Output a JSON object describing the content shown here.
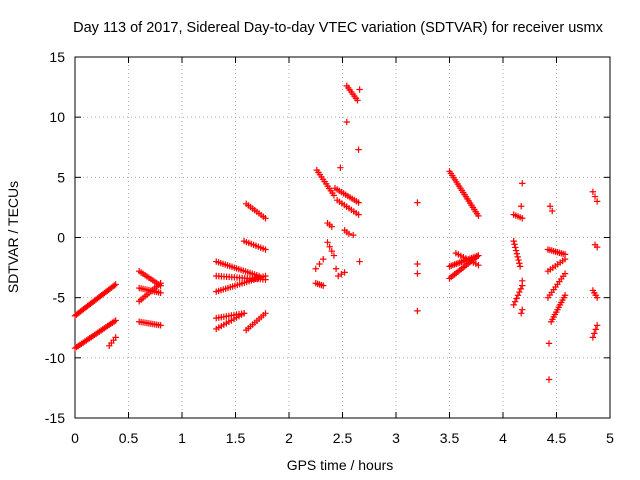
{
  "chart_data": {
    "type": "scatter",
    "title": "Day 113 of 2017, Sidereal Day-to-day VTEC variation (SDTVAR) for receiver usmx",
    "xlabel": "GPS time / hours",
    "ylabel": "SDTVAR / TECUs",
    "xlim": [
      0,
      5
    ],
    "ylim": [
      -15,
      15
    ],
    "xticks": [
      "0",
      "0.5",
      "1",
      "1.5",
      "2",
      "2.5",
      "3",
      "3.5",
      "4",
      "4.5",
      "5"
    ],
    "yticks": [
      "-15",
      "-10",
      "-5",
      "0",
      "5",
      "10",
      "15"
    ],
    "grid": true,
    "marker": "+",
    "colors": {
      "points": "#ff0000",
      "grid": "#a0a0a0",
      "axis": "#000000"
    },
    "arcs": [
      {
        "x0": 0.0,
        "y0": -6.5,
        "x1": 0.38,
        "y1": -3.9,
        "n": 30
      },
      {
        "x0": 0.0,
        "y0": -9.2,
        "x1": 0.38,
        "y1": -6.9,
        "n": 26
      },
      {
        "x0": 0.32,
        "y0": -9.0,
        "x1": 0.38,
        "y1": -8.3,
        "n": 4
      },
      {
        "x0": 0.6,
        "y0": -2.8,
        "x1": 0.8,
        "y1": -4.0,
        "n": 12
      },
      {
        "x0": 0.6,
        "y0": -4.2,
        "x1": 0.8,
        "y1": -4.6,
        "n": 12
      },
      {
        "x0": 0.6,
        "y0": -5.3,
        "x1": 0.8,
        "y1": -3.8,
        "n": 12
      },
      {
        "x0": 0.6,
        "y0": -7.0,
        "x1": 0.8,
        "y1": -7.3,
        "n": 12
      },
      {
        "x0": 1.32,
        "y0": -2.0,
        "x1": 1.72,
        "y1": -3.2,
        "n": 20
      },
      {
        "x0": 1.32,
        "y0": -4.5,
        "x1": 1.78,
        "y1": -3.2,
        "n": 22
      },
      {
        "x0": 1.32,
        "y0": -3.2,
        "x1": 1.78,
        "y1": -3.5,
        "n": 20
      },
      {
        "x0": 1.32,
        "y0": -6.7,
        "x1": 1.58,
        "y1": -6.3,
        "n": 12
      },
      {
        "x0": 1.32,
        "y0": -7.6,
        "x1": 1.58,
        "y1": -6.3,
        "n": 12
      },
      {
        "x0": 1.6,
        "y0": -7.7,
        "x1": 1.78,
        "y1": -6.3,
        "n": 10
      },
      {
        "x0": 1.58,
        "y0": -0.3,
        "x1": 1.78,
        "y1": -1.0,
        "n": 10
      },
      {
        "x0": 1.6,
        "y0": 2.8,
        "x1": 1.78,
        "y1": 1.6,
        "n": 10
      },
      {
        "x0": 2.26,
        "y0": 5.6,
        "x1": 2.42,
        "y1": 3.5,
        "n": 12
      },
      {
        "x0": 2.43,
        "y0": 4.1,
        "x1": 2.65,
        "y1": 2.9,
        "n": 12
      },
      {
        "x0": 2.45,
        "y0": 3.1,
        "x1": 2.65,
        "y1": 1.9,
        "n": 10
      },
      {
        "x0": 2.25,
        "y0": -2.6,
        "x1": 2.32,
        "y1": -1.8,
        "n": 3
      },
      {
        "x0": 2.25,
        "y0": -3.8,
        "x1": 2.32,
        "y1": -4.0,
        "n": 5
      },
      {
        "x0": 2.36,
        "y0": 1.2,
        "x1": 2.4,
        "y1": 0.9,
        "n": 3
      },
      {
        "x0": 2.36,
        "y0": -0.4,
        "x1": 2.42,
        "y1": -1.5,
        "n": 4
      },
      {
        "x0": 2.46,
        "y0": -3.2,
        "x1": 2.52,
        "y1": -2.9,
        "n": 3
      },
      {
        "x0": 2.54,
        "y0": 12.6,
        "x1": 2.64,
        "y1": 11.4,
        "n": 8
      },
      {
        "x0": 2.52,
        "y0": 0.6,
        "x1": 2.56,
        "y1": 0.3,
        "n": 3
      },
      {
        "x0": 3.5,
        "y0": 5.5,
        "x1": 3.77,
        "y1": 1.8,
        "n": 22
      },
      {
        "x0": 3.5,
        "y0": -2.4,
        "x1": 3.77,
        "y1": -1.5,
        "n": 18
      },
      {
        "x0": 3.5,
        "y0": -3.4,
        "x1": 3.77,
        "y1": -1.5,
        "n": 18
      },
      {
        "x0": 3.56,
        "y0": -1.3,
        "x1": 3.77,
        "y1": -2.3,
        "n": 10
      },
      {
        "x0": 4.1,
        "y0": 1.9,
        "x1": 4.18,
        "y1": 1.6,
        "n": 5
      },
      {
        "x0": 4.1,
        "y0": -0.3,
        "x1": 4.16,
        "y1": -2.4,
        "n": 9
      },
      {
        "x0": 4.1,
        "y0": -5.6,
        "x1": 4.18,
        "y1": -4.0,
        "n": 7
      },
      {
        "x0": 4.42,
        "y0": -1.0,
        "x1": 4.58,
        "y1": -1.4,
        "n": 10
      },
      {
        "x0": 4.42,
        "y0": -2.8,
        "x1": 4.58,
        "y1": -1.8,
        "n": 8
      },
      {
        "x0": 4.45,
        "y0": -7.0,
        "x1": 4.58,
        "y1": -4.8,
        "n": 12
      },
      {
        "x0": 4.42,
        "y0": -5.0,
        "x1": 4.58,
        "y1": -3.0,
        "n": 10
      },
      {
        "x0": 4.84,
        "y0": 3.8,
        "x1": 4.88,
        "y1": 3.0,
        "n": 3
      },
      {
        "x0": 4.84,
        "y0": -8.3,
        "x1": 4.88,
        "y1": -7.3,
        "n": 4
      },
      {
        "x0": 4.84,
        "y0": -4.4,
        "x1": 4.88,
        "y1": -5.0,
        "n": 4
      }
    ],
    "points": [
      {
        "x": 2.54,
        "y": 9.6
      },
      {
        "x": 2.65,
        "y": 7.3
      },
      {
        "x": 2.48,
        "y": 5.8
      },
      {
        "x": 2.66,
        "y": 12.3
      },
      {
        "x": 2.66,
        "y": -2.0
      },
      {
        "x": 2.44,
        "y": -2.6
      },
      {
        "x": 2.6,
        "y": 0.2
      },
      {
        "x": 3.2,
        "y": 2.9
      },
      {
        "x": 3.2,
        "y": -2.2
      },
      {
        "x": 3.2,
        "y": -3.0
      },
      {
        "x": 3.2,
        "y": -6.1
      },
      {
        "x": 4.18,
        "y": 4.5
      },
      {
        "x": 4.17,
        "y": 2.6
      },
      {
        "x": 4.18,
        "y": -3.6
      },
      {
        "x": 4.18,
        "y": -6.0
      },
      {
        "x": 4.17,
        "y": -6.3
      },
      {
        "x": 4.43,
        "y": -8.8
      },
      {
        "x": 4.43,
        "y": -11.8
      },
      {
        "x": 4.44,
        "y": 2.6
      },
      {
        "x": 4.46,
        "y": 2.2
      },
      {
        "x": 4.88,
        "y": -0.8
      },
      {
        "x": 4.86,
        "y": -0.6
      }
    ]
  }
}
